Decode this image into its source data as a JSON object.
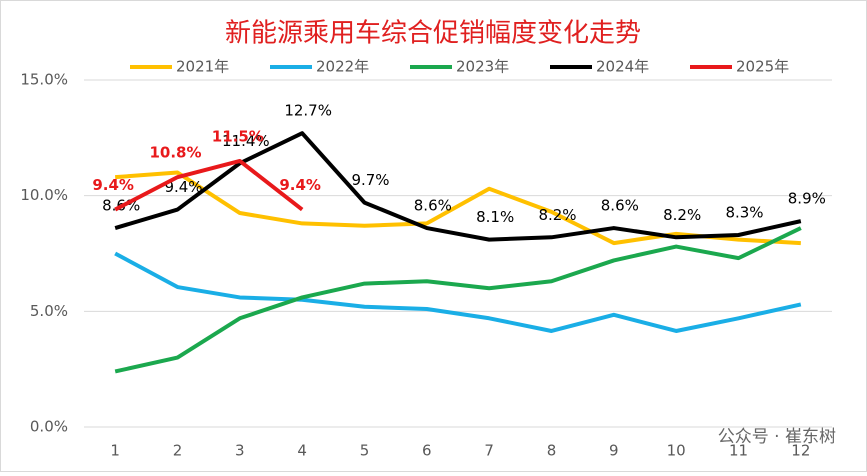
{
  "chart_data": {
    "type": "line",
    "title": "新能源乘用车综合促销幅度变化走势",
    "categories": [
      "1",
      "2",
      "3",
      "4",
      "5",
      "6",
      "7",
      "8",
      "9",
      "10",
      "11",
      "12"
    ],
    "series": [
      {
        "name": "2021年",
        "color": "#FFC000",
        "values": [
          10.8,
          11.0,
          9.25,
          8.8,
          8.7,
          8.8,
          10.3,
          9.3,
          7.95,
          8.35,
          8.1,
          7.95
        ]
      },
      {
        "name": "2022年",
        "color": "#1AAEE6",
        "values": [
          7.5,
          6.05,
          5.6,
          5.5,
          5.2,
          5.1,
          4.7,
          4.15,
          4.85,
          4.15,
          4.7,
          5.3
        ]
      },
      {
        "name": "2023年",
        "color": "#1BA84E",
        "values": [
          2.4,
          3.0,
          4.7,
          5.6,
          6.2,
          6.3,
          6.0,
          6.3,
          7.2,
          7.8,
          7.3,
          8.6
        ]
      },
      {
        "name": "2024年",
        "color": "#000000",
        "values": [
          8.6,
          9.4,
          11.4,
          12.7,
          9.7,
          8.6,
          8.1,
          8.2,
          8.6,
          8.2,
          8.3,
          8.9
        ],
        "value_labels": [
          "8.6%",
          "9.4%",
          "11.4%",
          "12.7%",
          "9.7%",
          "8.6%",
          "8.1%",
          "8.2%",
          "8.6%",
          "8.2%",
          "8.3%",
          "8.9%"
        ]
      },
      {
        "name": "2025年",
        "color": "#E8191B",
        "values": [
          9.4,
          10.8,
          11.5,
          9.4,
          null,
          null,
          null,
          null,
          null,
          null,
          null,
          null
        ],
        "value_labels": [
          "9.4%",
          "10.8%",
          "11.5%",
          "9.4%",
          null,
          null,
          null,
          null,
          null,
          null,
          null,
          null
        ]
      }
    ],
    "ylim": [
      0,
      15
    ],
    "yticks": [
      {
        "value": 0,
        "label": "0.0%"
      },
      {
        "value": 5,
        "label": "5.0%"
      },
      {
        "value": 10,
        "label": "10.0%"
      },
      {
        "value": 15,
        "label": "15.0%"
      }
    ],
    "grid": true,
    "legend": "top"
  },
  "watermark": "公众号 · 崔东树"
}
